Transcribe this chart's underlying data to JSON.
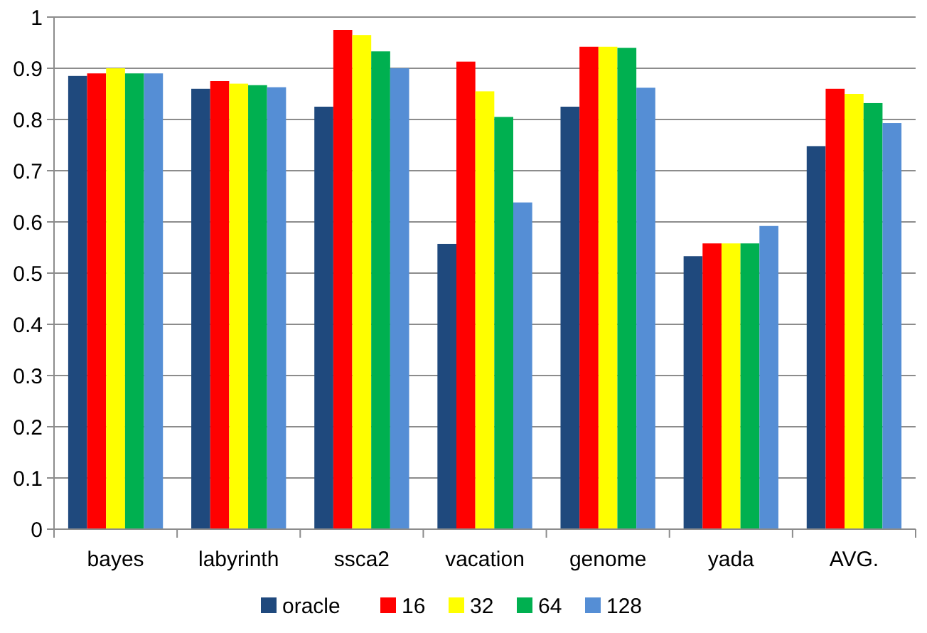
{
  "chart_data": {
    "type": "bar",
    "categories": [
      "bayes",
      "labyrinth",
      "ssca2",
      "vacation",
      "genome",
      "yada",
      "AVG."
    ],
    "series": [
      {
        "name": "oracle",
        "color": "#1f497d",
        "values": [
          0.885,
          0.86,
          0.825,
          0.557,
          0.825,
          0.533,
          0.748
        ]
      },
      {
        "name": "16",
        "color": "#ff0000",
        "values": [
          0.89,
          0.875,
          0.975,
          0.913,
          0.942,
          0.558,
          0.86
        ]
      },
      {
        "name": "32",
        "color": "#ffff00",
        "values": [
          0.9,
          0.87,
          0.965,
          0.855,
          0.942,
          0.558,
          0.85
        ]
      },
      {
        "name": "64",
        "color": "#00b050",
        "values": [
          0.89,
          0.867,
          0.933,
          0.805,
          0.94,
          0.558,
          0.832
        ]
      },
      {
        "name": "128",
        "color": "#558ed5",
        "values": [
          0.89,
          0.863,
          0.9,
          0.638,
          0.862,
          0.592,
          0.793
        ]
      }
    ],
    "ylim": [
      0,
      1
    ],
    "yticks": [
      0,
      0.1,
      0.2,
      0.3,
      0.4,
      0.5,
      0.6,
      0.7,
      0.8,
      0.9,
      1
    ],
    "grid": "y",
    "legend": "bottom"
  }
}
